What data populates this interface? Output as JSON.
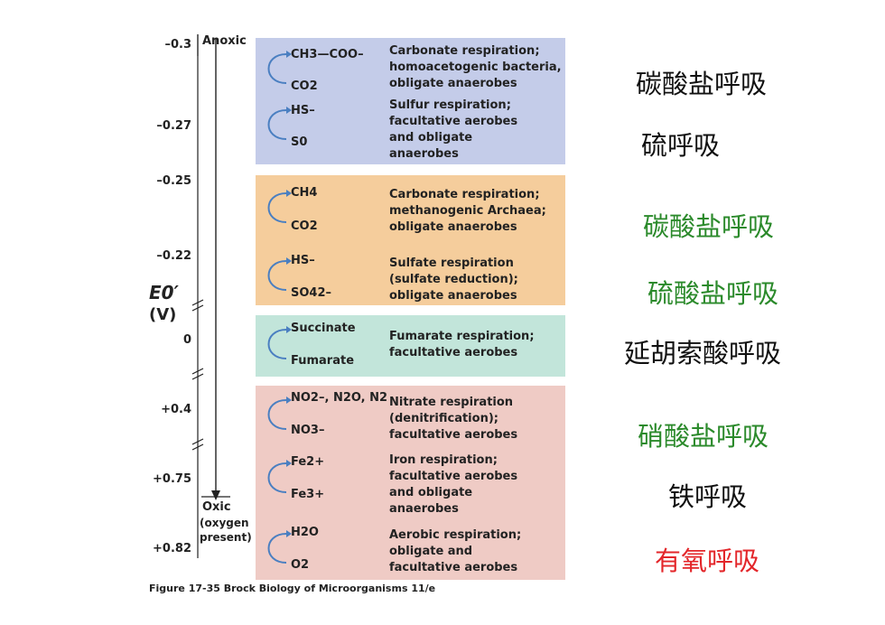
{
  "axis": {
    "top_label": "Anoxic",
    "bottom_label": "Oxic",
    "bottom_sub1": "(oxygen",
    "bottom_sub2": "present)",
    "y_label": "E0′",
    "y_unit": "(V)",
    "ticks": [
      "–0.3",
      "–0.27",
      "–0.25",
      "–0.22",
      "0",
      "+0.4",
      "+0.75",
      "+0.82"
    ]
  },
  "colors": {
    "blue": "#c4cce9",
    "orange": "#f5cd9c",
    "teal": "#c2e5da",
    "pink": "#efcbc5",
    "arrow": "#4a7fc1",
    "green": "#2b8a2b",
    "red": "#e3262a",
    "black": "#111111"
  },
  "reactions": [
    {
      "top": "CH3—COO–",
      "bottom": "CO2",
      "desc": [
        "Carbonate respiration;",
        "homoacetogenic bacteria,",
        "obligate anaerobes"
      ]
    },
    {
      "top": "HS–",
      "bottom": "S0",
      "desc": [
        "Sulfur respiration;",
        "facultative aerobes",
        "and obligate",
        "anaerobes"
      ]
    },
    {
      "top": "CH4",
      "bottom": "CO2",
      "desc": [
        "Carbonate respiration;",
        "methanogenic Archaea;",
        "obligate anaerobes"
      ]
    },
    {
      "top": "HS–",
      "bottom": "SO42–",
      "desc": [
        "Sulfate respiration",
        "(sulfate reduction);",
        "obligate anaerobes"
      ]
    },
    {
      "top": "Succinate",
      "bottom": "Fumarate",
      "desc": [
        "Fumarate respiration;",
        "facultative aerobes"
      ]
    },
    {
      "top": "NO2–, N2O, N2",
      "bottom": "NO3–",
      "desc": [
        "Nitrate respiration",
        "(denitrification);",
        "facultative aerobes"
      ]
    },
    {
      "top": "Fe2+",
      "bottom": "Fe3+",
      "desc": [
        "Iron respiration;",
        "facultative aerobes",
        "and obligate",
        "anaerobes"
      ]
    },
    {
      "top": "H2O",
      "bottom": "O2",
      "desc": [
        "Aerobic respiration;",
        "obligate and",
        "facultative aerobes"
      ]
    }
  ],
  "chinese_labels": [
    {
      "text": "碳酸盐呼吸",
      "color": "black"
    },
    {
      "text": "硫呼吸",
      "color": "black"
    },
    {
      "text": "碳酸盐呼吸",
      "color": "green"
    },
    {
      "text": "硫酸盐呼吸",
      "color": "green"
    },
    {
      "text": "延胡索酸呼吸",
      "color": "black"
    },
    {
      "text": "硝酸盐呼吸",
      "color": "green"
    },
    {
      "text": "铁呼吸",
      "color": "black"
    },
    {
      "text": "有氧呼吸",
      "color": "red"
    }
  ],
  "caption": "Figure 17-35  Brock Biology of Microorganisms 11/e"
}
